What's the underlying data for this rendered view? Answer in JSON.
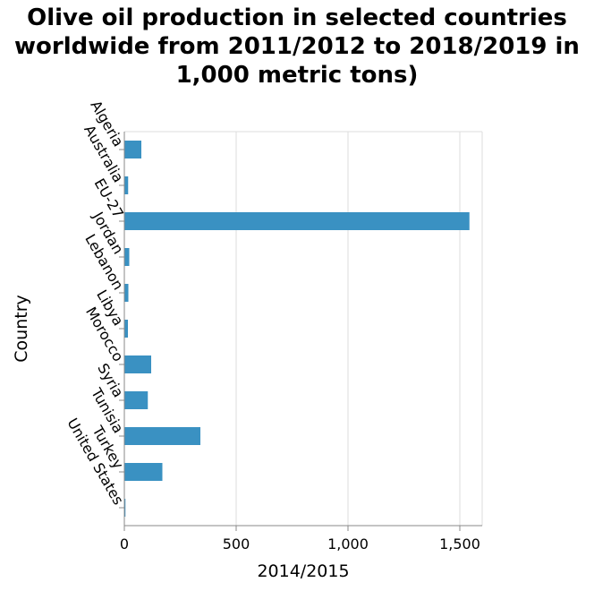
{
  "chart_data": {
    "type": "bar",
    "orientation": "horizontal",
    "title": "Olive oil production in selected countries worldwide from 2011/2012 to 2018/2019 in 1,000 metric tons)",
    "xlabel": "2014/2015",
    "ylabel": "Country",
    "xlim": [
      0,
      1600
    ],
    "xticks": [
      0,
      500,
      1000,
      1500
    ],
    "xtick_labels": [
      "0",
      "500",
      "1,000",
      "1,500"
    ],
    "grid": true,
    "bar_color": "#3a91c2",
    "categories": [
      "Algeria",
      "Australia",
      "EU-27",
      "Jordan",
      "Lebanon",
      "Libya",
      "Morocco",
      "Syria",
      "Tunisia",
      "Turkey",
      "United States"
    ],
    "values": [
      76,
      17,
      1543,
      22,
      18,
      16,
      120,
      105,
      340,
      170,
      5
    ]
  }
}
